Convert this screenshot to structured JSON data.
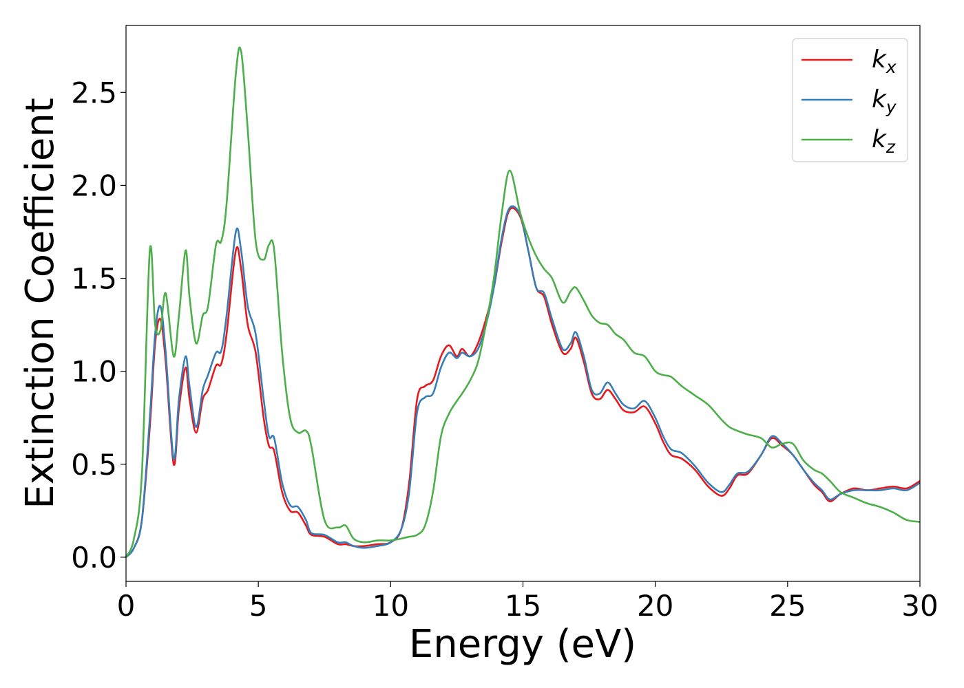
{
  "chart_data": {
    "type": "line",
    "title": "",
    "xlabel": "Energy (eV)",
    "ylabel": "Extinction Coefficient",
    "xlim": [
      0,
      30
    ],
    "ylim": [
      -0.13,
      2.86
    ],
    "xticks": [
      "0",
      "5",
      "10",
      "15",
      "20",
      "25",
      "30"
    ],
    "yticks": [
      "0.0",
      "0.5",
      "1.0",
      "1.5",
      "2.0",
      "2.5"
    ],
    "grid": false,
    "legend_position": "top-right",
    "x": [
      0,
      0.3,
      0.6,
      0.9,
      1.1,
      1.3,
      1.5,
      1.8,
      2.0,
      2.25,
      2.4,
      2.65,
      2.9,
      3.1,
      3.4,
      3.6,
      3.8,
      4.15,
      4.35,
      4.6,
      4.9,
      5.2,
      5.4,
      5.6,
      5.9,
      6.2,
      6.5,
      6.8,
      7.0,
      7.5,
      8.0,
      8.3,
      8.6,
      9.0,
      9.5,
      10.0,
      10.4,
      10.7,
      11.0,
      11.3,
      11.6,
      11.9,
      12.2,
      12.5,
      12.7,
      13.0,
      13.3,
      13.6,
      13.9,
      14.2,
      14.5,
      14.9,
      15.2,
      15.5,
      15.8,
      16.1,
      16.5,
      16.8,
      17.0,
      17.3,
      17.6,
      17.9,
      18.2,
      18.5,
      18.8,
      19.2,
      19.6,
      20.0,
      20.3,
      20.6,
      21.0,
      21.5,
      22.0,
      22.5,
      22.8,
      23.1,
      23.5,
      24.0,
      24.4,
      24.8,
      25.2,
      25.6,
      26.0,
      26.3,
      26.6,
      27.0,
      27.5,
      28.0,
      28.5,
      29.0,
      29.5,
      30.0
    ],
    "series": [
      {
        "name": "k_x",
        "color": "#e41a1c",
        "values": [
          0.0,
          0.05,
          0.2,
          0.7,
          1.15,
          1.28,
          1.05,
          0.5,
          0.8,
          1.02,
          0.85,
          0.67,
          0.85,
          0.9,
          1.03,
          1.04,
          1.2,
          1.65,
          1.55,
          1.25,
          1.1,
          0.75,
          0.6,
          0.57,
          0.35,
          0.25,
          0.24,
          0.17,
          0.12,
          0.11,
          0.07,
          0.07,
          0.06,
          0.06,
          0.07,
          0.08,
          0.15,
          0.4,
          0.85,
          0.92,
          0.95,
          1.08,
          1.14,
          1.08,
          1.12,
          1.08,
          1.15,
          1.28,
          1.45,
          1.7,
          1.87,
          1.83,
          1.65,
          1.45,
          1.4,
          1.25,
          1.1,
          1.12,
          1.18,
          1.05,
          0.88,
          0.85,
          0.9,
          0.85,
          0.79,
          0.78,
          0.81,
          0.72,
          0.62,
          0.55,
          0.53,
          0.47,
          0.38,
          0.33,
          0.37,
          0.44,
          0.45,
          0.55,
          0.64,
          0.6,
          0.55,
          0.47,
          0.39,
          0.35,
          0.3,
          0.34,
          0.37,
          0.36,
          0.37,
          0.38,
          0.37,
          0.41
        ]
      },
      {
        "name": "k_y",
        "color": "#377eb8",
        "values": [
          0.0,
          0.05,
          0.2,
          0.75,
          1.2,
          1.35,
          1.1,
          0.53,
          0.85,
          1.08,
          0.92,
          0.7,
          0.9,
          0.98,
          1.1,
          1.11,
          1.3,
          1.75,
          1.65,
          1.35,
          1.2,
          0.85,
          0.65,
          0.64,
          0.4,
          0.28,
          0.27,
          0.2,
          0.13,
          0.12,
          0.08,
          0.08,
          0.06,
          0.05,
          0.06,
          0.08,
          0.15,
          0.35,
          0.78,
          0.86,
          0.88,
          1.02,
          1.1,
          1.07,
          1.1,
          1.08,
          1.12,
          1.25,
          1.45,
          1.72,
          1.88,
          1.84,
          1.65,
          1.45,
          1.42,
          1.28,
          1.12,
          1.15,
          1.21,
          1.08,
          0.9,
          0.88,
          0.94,
          0.88,
          0.82,
          0.8,
          0.84,
          0.75,
          0.65,
          0.58,
          0.56,
          0.49,
          0.4,
          0.35,
          0.39,
          0.45,
          0.46,
          0.55,
          0.65,
          0.61,
          0.55,
          0.47,
          0.4,
          0.36,
          0.31,
          0.34,
          0.36,
          0.36,
          0.36,
          0.37,
          0.36,
          0.4
        ]
      },
      {
        "name": "k_z",
        "color": "#4daf4a",
        "values": [
          0.0,
          0.1,
          0.45,
          1.65,
          1.25,
          1.22,
          1.42,
          1.08,
          1.3,
          1.65,
          1.4,
          1.15,
          1.3,
          1.35,
          1.68,
          1.7,
          1.9,
          2.6,
          2.72,
          2.3,
          1.7,
          1.6,
          1.68,
          1.65,
          1.1,
          0.75,
          0.67,
          0.68,
          0.6,
          0.2,
          0.16,
          0.17,
          0.1,
          0.08,
          0.09,
          0.09,
          0.1,
          0.11,
          0.12,
          0.17,
          0.35,
          0.65,
          0.77,
          0.84,
          0.88,
          0.95,
          1.05,
          1.25,
          1.5,
          1.85,
          2.08,
          1.85,
          1.72,
          1.62,
          1.55,
          1.5,
          1.37,
          1.43,
          1.45,
          1.38,
          1.3,
          1.26,
          1.25,
          1.2,
          1.17,
          1.1,
          1.08,
          1.0,
          0.98,
          0.97,
          0.92,
          0.87,
          0.82,
          0.74,
          0.7,
          0.68,
          0.66,
          0.64,
          0.59,
          0.61,
          0.61,
          0.52,
          0.47,
          0.45,
          0.41,
          0.35,
          0.32,
          0.29,
          0.27,
          0.24,
          0.2,
          0.19
        ]
      }
    ]
  }
}
